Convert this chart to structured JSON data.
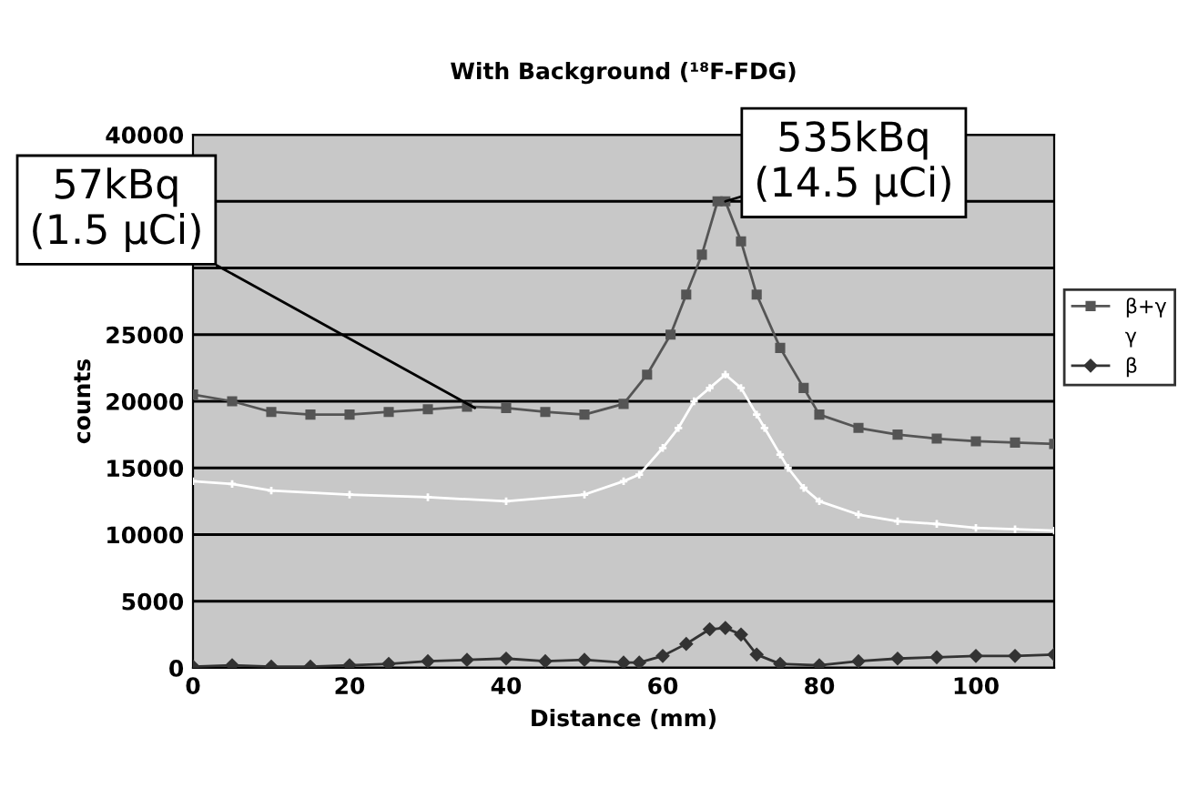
{
  "chart_data": {
    "type": "line",
    "title": "With Background (¹⁸F-FDG)",
    "xlabel": "Distance (mm)",
    "ylabel": "counts",
    "xlim": [
      0,
      110
    ],
    "ylim": [
      0,
      40000
    ],
    "xticks": [
      0,
      20,
      40,
      60,
      80,
      100
    ],
    "yticks": [
      0,
      5000,
      10000,
      15000,
      20000,
      25000,
      {
        "value": 30000,
        "label": null
      },
      {
        "value": 35000,
        "label": null
      },
      40000
    ],
    "grid": "y",
    "legend": "right",
    "series": [
      {
        "name": "β+γ",
        "color": "#555555",
        "marker": "square",
        "x": [
          0,
          5,
          10,
          15,
          20,
          25,
          30,
          35,
          40,
          45,
          50,
          55,
          58,
          61,
          63,
          65,
          67,
          68,
          70,
          72,
          75,
          78,
          80,
          85,
          90,
          95,
          100,
          105,
          110
        ],
        "values": [
          20500,
          20000,
          19200,
          19000,
          19000,
          19200,
          19400,
          19600,
          19500,
          19200,
          19000,
          19800,
          22000,
          25000,
          28000,
          31000,
          35000,
          35000,
          32000,
          28000,
          24000,
          21000,
          19000,
          18000,
          17500,
          17200,
          17000,
          16900,
          16800
        ]
      },
      {
        "name": "γ",
        "color": "#ffffff",
        "marker": "cross",
        "x": [
          0,
          5,
          10,
          20,
          30,
          40,
          50,
          55,
          57,
          60,
          62,
          64,
          66,
          68,
          70,
          72,
          73,
          75,
          76,
          78,
          80,
          85,
          90,
          95,
          100,
          105,
          110
        ],
        "values": [
          14000,
          13800,
          13300,
          13000,
          12800,
          12500,
          13000,
          14000,
          14500,
          16500,
          18000,
          20000,
          21000,
          22000,
          21000,
          19000,
          18000,
          16000,
          15000,
          13500,
          12500,
          11500,
          11000,
          10800,
          10500,
          10400,
          10300
        ]
      },
      {
        "name": "β",
        "color": "#333333",
        "marker": "diamond",
        "x": [
          0,
          5,
          10,
          15,
          20,
          25,
          30,
          35,
          40,
          45,
          50,
          55,
          57,
          60,
          63,
          66,
          68,
          70,
          72,
          75,
          80,
          85,
          90,
          95,
          100,
          105,
          110
        ],
        "values": [
          100,
          200,
          100,
          100,
          200,
          300,
          500,
          600,
          700,
          500,
          600,
          400,
          400,
          900,
          1800,
          2900,
          3000,
          2500,
          1000,
          300,
          200,
          500,
          700,
          800,
          900,
          900,
          1000
        ]
      }
    ],
    "annotations": [
      {
        "text": "57kBq\n(1.5 μCi)",
        "x": 36,
        "y": 19500
      },
      {
        "text": "535kBq\n(14.5 μCi)",
        "x": 68,
        "y": 35000
      }
    ]
  }
}
